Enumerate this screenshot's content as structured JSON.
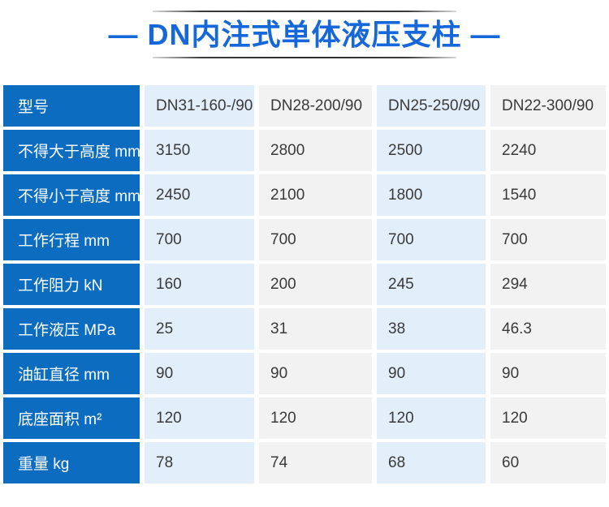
{
  "title": {
    "text": "— DN内注式单体液压支柱 —"
  },
  "colors": {
    "title_blue": "#1667d9",
    "header_column_blue": "#0c6dc0",
    "column_light_blue": "#e2effb",
    "column_light_gray": "#f2f2f2",
    "cell_text": "#3a3a3a"
  },
  "table": {
    "rows": [
      {
        "label": "型号",
        "values": [
          "DN31-160-/90",
          "DN28-200/90",
          "DN25-250/90",
          "DN22-300/90"
        ]
      },
      {
        "label": "不得大于高度 mm",
        "values": [
          "3150",
          "2800",
          "2500",
          "2240"
        ]
      },
      {
        "label": "不得小于高度 mm",
        "values": [
          "2450",
          "2100",
          "1800",
          "1540"
        ]
      },
      {
        "label": "工作行程 mm",
        "values": [
          "700",
          "700",
          "700",
          "700"
        ]
      },
      {
        "label": "工作阻力 kN",
        "values": [
          "160",
          "200",
          "245",
          "294"
        ]
      },
      {
        "label": "工作液压 MPa",
        "values": [
          "25",
          "31",
          "38",
          "46.3"
        ]
      },
      {
        "label": "油缸直径 mm",
        "values": [
          "90",
          "90",
          "90",
          "90"
        ]
      },
      {
        "label": "底座面积 m²",
        "values": [
          "120",
          "120",
          "120",
          "120"
        ]
      },
      {
        "label": "重量 kg",
        "values": [
          "78",
          "74",
          "68",
          "60"
        ]
      }
    ]
  },
  "chart_data": {
    "type": "table",
    "title": "DN内注式单体液压支柱",
    "columns": [
      "型号",
      "DN31-160-/90",
      "DN28-200/90",
      "DN25-250/90",
      "DN22-300/90"
    ],
    "rows": [
      [
        "不得大于高度 mm",
        3150,
        2800,
        2500,
        2240
      ],
      [
        "不得小于高度 mm",
        2450,
        2100,
        1800,
        1540
      ],
      [
        "工作行程 mm",
        700,
        700,
        700,
        700
      ],
      [
        "工作阻力 kN",
        160,
        200,
        245,
        294
      ],
      [
        "工作液压 MPa",
        25,
        31,
        38,
        46.3
      ],
      [
        "油缸直径 mm",
        90,
        90,
        90,
        90
      ],
      [
        "底座面积 m²",
        120,
        120,
        120,
        120
      ],
      [
        "重量 kg",
        78,
        74,
        68,
        60
      ]
    ]
  }
}
